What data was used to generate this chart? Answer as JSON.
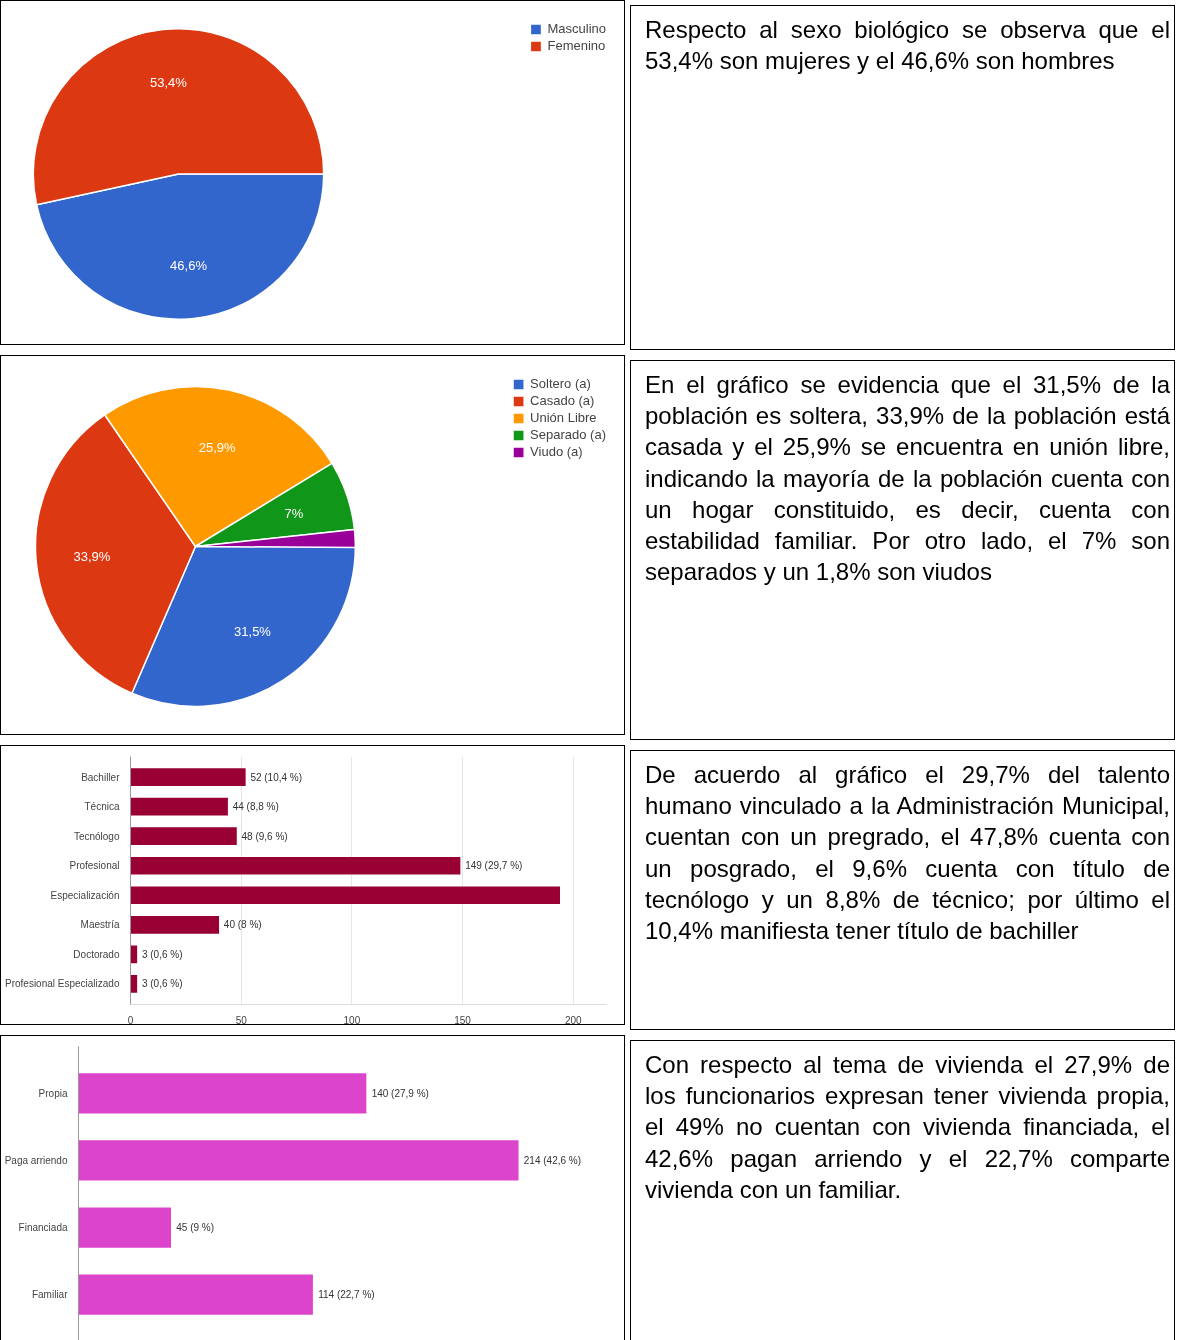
{
  "chart_data": [
    {
      "type": "pie",
      "categories": [
        "Masculino",
        "Femenino"
      ],
      "values": [
        46.6,
        53.4
      ],
      "colors": [
        "#3366cc",
        "#dc3912"
      ],
      "value_labels": [
        "46,6%",
        "53,4%"
      ],
      "legend": "top right"
    },
    {
      "type": "other",
      "annotations": [
        "Respecto al sexo biológico se observa que el 53,4% son mujeres y el 46,6% son hombres"
      ]
    },
    {
      "type": "pie",
      "categories": [
        "Soltero (a)",
        "Casado (a)",
        "Unión Libre",
        "Separado (a)",
        "Viudo (a)"
      ],
      "values": [
        31.5,
        33.9,
        25.9,
        7,
        1.8
      ],
      "colors": [
        "#3366cc",
        "#dc3912",
        "#ff9900",
        "#109618",
        "#990099"
      ],
      "value_labels": [
        "31,5%",
        "33,9%",
        "25,9%",
        "7%",
        null
      ],
      "legend": "top right"
    },
    {
      "type": "other",
      "annotations": [
        "En el gráfico se evidencia que el 31,5% de la población es soltera, 33,9% de la población está casada y el 25,9% se encuentra en unión libre, indicando la mayoría de la población cuenta con un hogar constituido, es decir, cuenta con estabilidad familiar. Por otro lado, el 7% son separados y un 1,8% son viudos"
      ]
    },
    {
      "type": "bar",
      "orientation": "horizontal",
      "categories": [
        "Bachiller",
        "Técnica",
        "Tecnólogo",
        "Profesional",
        "Especialización",
        "Maestría",
        "Doctorado",
        "Profesional Especializado"
      ],
      "values": [
        52,
        44,
        48,
        149,
        194,
        40,
        3,
        3
      ],
      "color": "#990033",
      "value_labels": [
        "52 (10,4 %)",
        "44 (8,8 %)",
        "48 (9,6 %)",
        "149 (29,7 %)",
        null,
        "40 (8 %)",
        "3 (0,6 %)",
        "3 (0,6 %)"
      ],
      "xlim": [
        0,
        215
      ],
      "xticks": [
        0,
        50,
        100,
        150,
        200
      ],
      "grid": "x"
    },
    {
      "type": "other",
      "annotations": [
        "De acuerdo al gráfico el 29,7% del talento humano vinculado a la Administración Municipal, cuentan con un pregrado, el 47,8% cuenta con un posgrado, el 9,6% cuenta con título de tecnólogo y un 8,8% de técnico; por último el 10,4% manifiesta tener título de bachiller"
      ]
    },
    {
      "type": "bar",
      "orientation": "horizontal",
      "categories": [
        "Propia",
        "Paga arriendo",
        "Financiada",
        "Familiar"
      ],
      "values": [
        140,
        214,
        45,
        114
      ],
      "color": "#dd44cc",
      "value_labels": [
        "140 (27,9 %)",
        "214 (42,6 %)",
        "45 (9 %)",
        "114 (22,7 %)"
      ],
      "tick_labels": "y"
    },
    {
      "type": "other",
      "annotations": [
        "Con respecto al tema de vivienda el 27,9% de los funcionarios expresan tener vivienda propia, el 49% no cuentan con vivienda financiada, el 42,6% pagan arriendo y el 22,7% comparte vivienda con un familiar."
      ]
    }
  ]
}
